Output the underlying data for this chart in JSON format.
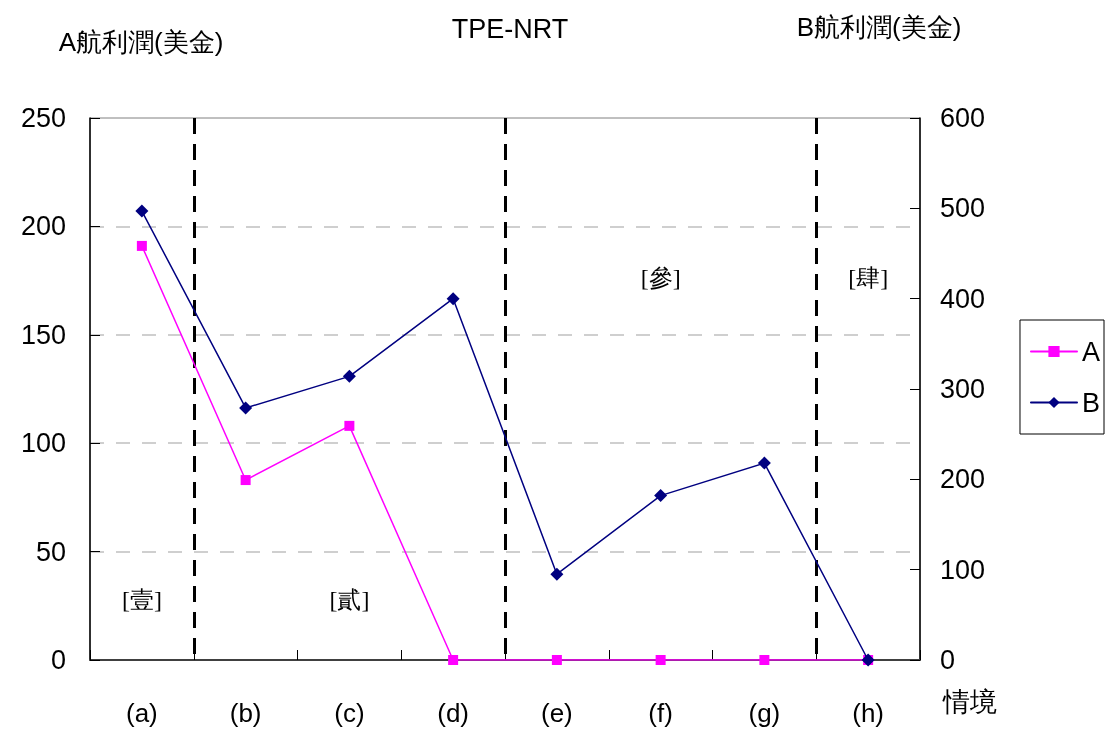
{
  "chart_data": {
    "type": "line",
    "title": "TPE-NRT",
    "xlabel": "情境",
    "ylabel": "A航利潤(美金)",
    "y2label": "B航利潤(美金)",
    "categories": [
      "(a)",
      "(b)",
      "(c)",
      "(d)",
      "(e)",
      "(f)",
      "(g)",
      "(h)"
    ],
    "series": [
      {
        "name": "A",
        "color": "#ff00ff",
        "marker": "square",
        "values": [
          191,
          83,
          108,
          0,
          0,
          0,
          0,
          0
        ]
      },
      {
        "name": "B",
        "color": "#000080",
        "marker": "diamond",
        "axis": "y2",
        "values": [
          497,
          279,
          314,
          400,
          95,
          182,
          218,
          0
        ]
      }
    ],
    "ylim": [
      0,
      250
    ],
    "yticks": [
      0,
      50,
      100,
      150,
      200,
      250
    ],
    "y2lim": [
      0,
      600
    ],
    "y2ticks": [
      0,
      100,
      200,
      300,
      400,
      500,
      600
    ],
    "grid": "y",
    "legend": "right",
    "line_style": "solid",
    "annotations": [
      "[壹]",
      "[貳]",
      "[參]",
      "[肆]"
    ]
  }
}
